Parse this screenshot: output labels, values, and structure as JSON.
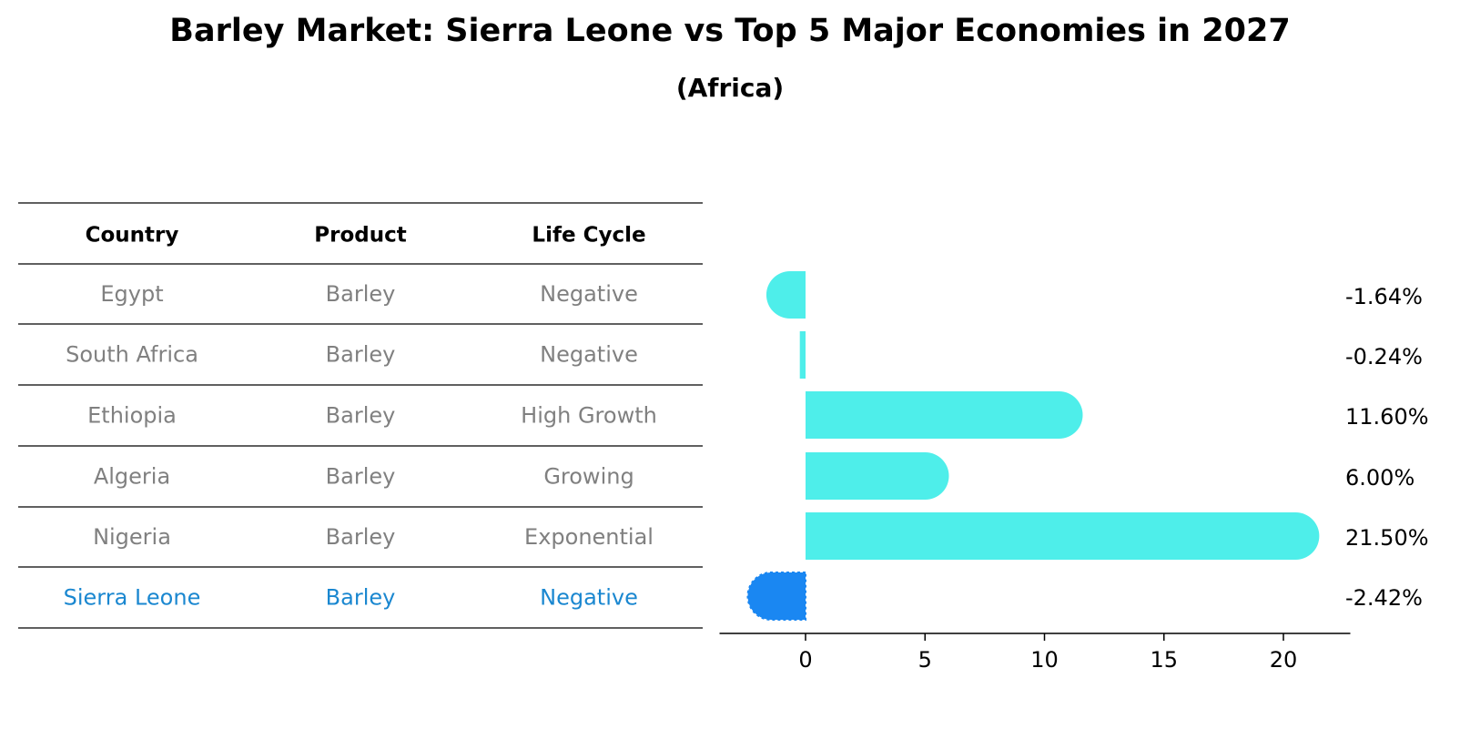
{
  "title": "Barley Market: Sierra Leone vs Top 5 Major Economies in 2027",
  "subtitle": "(Africa)",
  "table": {
    "headers": [
      "Country",
      "Product",
      "Life Cycle"
    ],
    "rows": [
      {
        "country": "Egypt",
        "product": "Barley",
        "life_cycle": "Negative",
        "highlight": false
      },
      {
        "country": "South Africa",
        "product": "Barley",
        "life_cycle": "Negative",
        "highlight": false
      },
      {
        "country": "Ethiopia",
        "product": "Barley",
        "life_cycle": "High Growth",
        "highlight": false
      },
      {
        "country": "Algeria",
        "product": "Barley",
        "life_cycle": "Growing",
        "highlight": false
      },
      {
        "country": "Nigeria",
        "product": "Barley",
        "life_cycle": "Exponential",
        "highlight": false
      },
      {
        "country": "Sierra Leone",
        "product": "Barley",
        "life_cycle": "Negative",
        "highlight": true
      }
    ]
  },
  "chart_data": {
    "type": "bar",
    "orientation": "horizontal",
    "categories": [
      "Egypt",
      "South Africa",
      "Ethiopia",
      "Algeria",
      "Nigeria",
      "Sierra Leone"
    ],
    "values": [
      -1.64,
      -0.24,
      11.6,
      6.0,
      21.5,
      -2.42
    ],
    "value_labels": [
      "-1.64%",
      "-0.24%",
      "11.60%",
      "6.00%",
      "21.50%",
      "-2.42%"
    ],
    "highlight_category": "Sierra Leone",
    "xticks": [
      0,
      5,
      10,
      15,
      20
    ],
    "xlim": [
      -3.6,
      22.8
    ],
    "xlabel": "",
    "ylabel": "",
    "grid": false
  },
  "colors": {
    "bar": "#4EEEEA",
    "highlight_bar": "#1A87F2",
    "normal_text": "#808080",
    "highlight_text": "#1A87D0",
    "header_text": "#000000",
    "rule_line": "#000000"
  }
}
